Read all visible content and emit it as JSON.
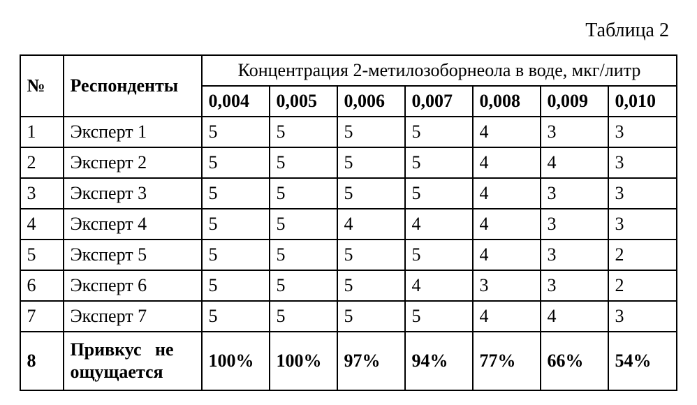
{
  "caption": "Таблица 2",
  "headers": {
    "num": "№",
    "respondents": "Респонденты",
    "group": "Концентрация 2-метилозоборнеола в воде, мкг/литр",
    "conc": [
      "0,004",
      "0,005",
      "0,006",
      "0,007",
      "0,008",
      "0,009",
      "0,010"
    ]
  },
  "rows": [
    {
      "n": "1",
      "resp": "Эксперт 1",
      "v": [
        "5",
        "5",
        "5",
        "5",
        "4",
        "3",
        "3"
      ]
    },
    {
      "n": "2",
      "resp": "Эксперт 2",
      "v": [
        "5",
        "5",
        "5",
        "5",
        "4",
        "4",
        "3"
      ]
    },
    {
      "n": "3",
      "resp": "Эксперт 3",
      "v": [
        "5",
        "5",
        "5",
        "5",
        "4",
        "3",
        "3"
      ]
    },
    {
      "n": "4",
      "resp": "Эксперт 4",
      "v": [
        "5",
        "5",
        "4",
        "4",
        "4",
        "3",
        "3"
      ]
    },
    {
      "n": "5",
      "resp": "Эксперт 5",
      "v": [
        "5",
        "5",
        "5",
        "5",
        "4",
        "3",
        "2"
      ]
    },
    {
      "n": "6",
      "resp": "Эксперт 6",
      "v": [
        "5",
        "5",
        "5",
        "4",
        "3",
        "3",
        "2"
      ]
    },
    {
      "n": "7",
      "resp": "Эксперт 7",
      "v": [
        "5",
        "5",
        "5",
        "5",
        "4",
        "4",
        "3"
      ]
    }
  ],
  "summary": {
    "n": "8",
    "label_line1": "Привкус   не",
    "label_line2": "ощущается",
    "v": [
      "100%",
      "100%",
      "97%",
      "94%",
      "77%",
      "66%",
      "54%"
    ]
  }
}
